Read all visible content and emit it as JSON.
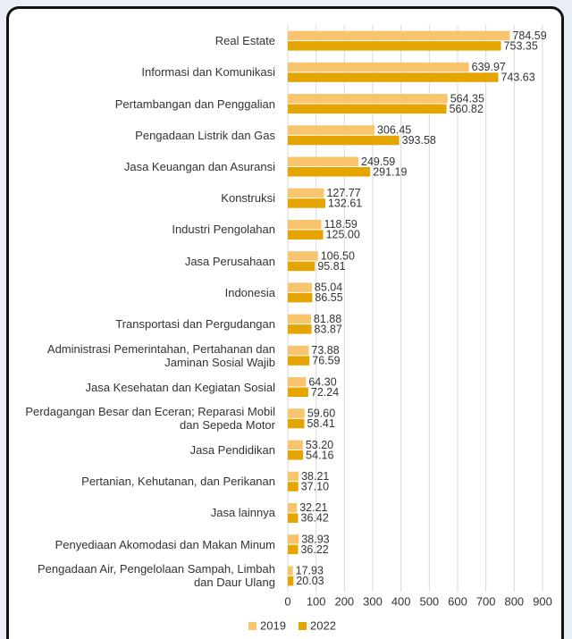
{
  "chart_data": {
    "type": "bar",
    "orientation": "horizontal",
    "categories": [
      "Real Estate",
      "Informasi dan Komunikasi",
      "Pertambangan dan Penggalian",
      "Pengadaan Listrik dan Gas",
      "Jasa Keuangan dan Asuransi",
      "Konstruksi",
      "Industri Pengolahan",
      "Jasa Perusahaan",
      "Indonesia",
      "Transportasi dan Pergudangan",
      "Administrasi Pemerintahan, Pertahanan dan Jaminan Sosial Wajib",
      "Jasa Kesehatan dan Kegiatan Sosial",
      "Perdagangan Besar dan Eceran; Reparasi Mobil dan Sepeda Motor",
      "Jasa Pendidikan",
      "Pertanian, Kehutanan, dan Perikanan",
      "Jasa lainnya",
      "Penyediaan Akomodasi dan Makan Minum",
      "Pengadaan Air, Pengelolaan Sampah, Limbah dan Daur Ulang"
    ],
    "series": [
      {
        "name": "2019",
        "color": "#f9c46e",
        "values": [
          784.59,
          639.97,
          564.35,
          306.45,
          249.59,
          127.77,
          118.59,
          106.5,
          85.04,
          81.88,
          73.88,
          64.3,
          59.6,
          53.2,
          38.21,
          32.21,
          38.93,
          17.93
        ],
        "value_labels": [
          "784.59",
          "639.97",
          "564.35",
          "306.45",
          "249.59",
          "127.77",
          "118.59",
          "106.50",
          "85.04",
          "81.88",
          "73.88",
          "64.30",
          "59.60",
          "53.20",
          "38.21",
          "32.21",
          "38.93",
          "17.93"
        ]
      },
      {
        "name": "2022",
        "color": "#e5a500",
        "values": [
          753.35,
          743.63,
          560.82,
          393.58,
          291.19,
          132.61,
          125.0,
          95.81,
          86.55,
          83.87,
          76.59,
          72.24,
          58.41,
          54.16,
          37.1,
          36.42,
          36.22,
          20.03
        ],
        "value_labels": [
          "753.35",
          "743.63",
          "560.82",
          "393.58",
          "291.19",
          "132.61",
          "125.00",
          "95.81",
          "86.55",
          "83.87",
          "76.59",
          "72.24",
          "58.41",
          "54.16",
          "37.10",
          "36.42",
          "36.22",
          "20.03"
        ]
      }
    ],
    "xlim": [
      0,
      900
    ],
    "xticks": [
      0,
      100,
      200,
      300,
      400,
      500,
      600,
      700,
      800,
      900
    ],
    "grid": true,
    "legend": "bottom"
  }
}
